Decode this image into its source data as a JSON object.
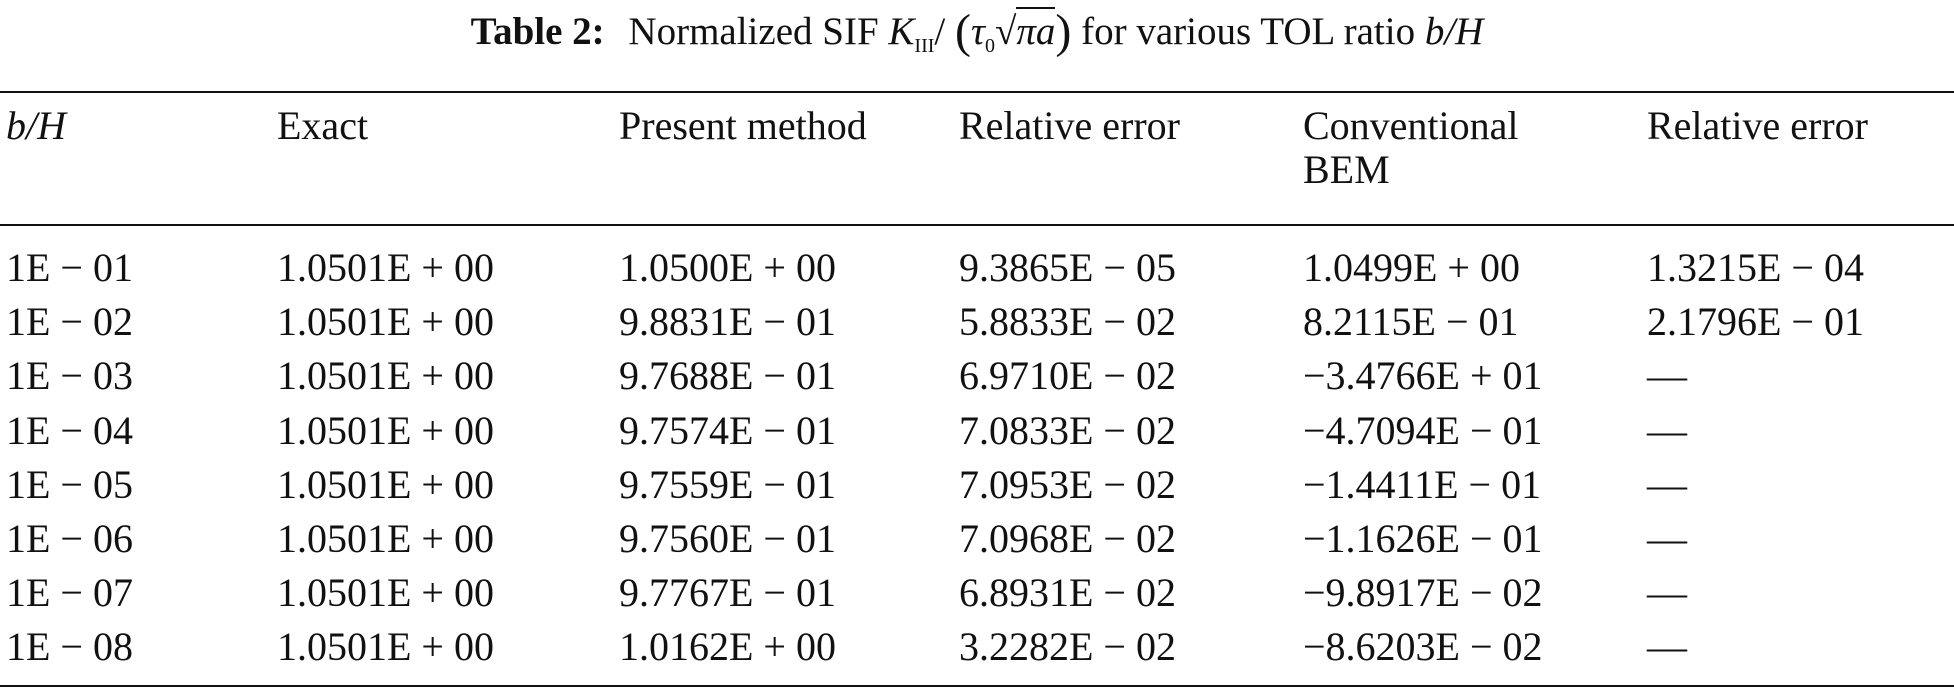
{
  "caption": {
    "label": "Table 2:",
    "text": "Normalized SIF",
    "symbol": "K",
    "subscript": "III",
    "slash": "/",
    "tau": "τ",
    "tau_subscript": "0",
    "radicand": "πa",
    "suffix": "for various TOL ratio",
    "ratio": "b/H"
  },
  "table": {
    "headers": [
      "b/H",
      "Exact",
      "Present method",
      "Relative error",
      "Conventional BEM",
      "Relative error"
    ],
    "rows": [
      [
        "1E − 01",
        "1.0501E + 00",
        "1.0500E + 00",
        "9.3865E − 05",
        "1.0499E + 00",
        "1.3215E − 04"
      ],
      [
        "1E − 02",
        "1.0501E + 00",
        "9.8831E − 01",
        "5.8833E − 02",
        "8.2115E − 01",
        "2.1796E − 01"
      ],
      [
        "1E − 03",
        "1.0501E + 00",
        "9.7688E − 01",
        "6.9710E − 02",
        "−3.4766E + 01",
        "—"
      ],
      [
        "1E − 04",
        "1.0501E + 00",
        "9.7574E − 01",
        "7.0833E − 02",
        "−4.7094E − 01",
        "—"
      ],
      [
        "1E − 05",
        "1.0501E + 00",
        "9.7559E − 01",
        "7.0953E − 02",
        "−1.4411E − 01",
        "—"
      ],
      [
        "1E − 06",
        "1.0501E + 00",
        "9.7560E − 01",
        "7.0968E − 02",
        "−1.1626E − 01",
        "—"
      ],
      [
        "1E − 07",
        "1.0501E + 00",
        "9.7767E − 01",
        "6.8931E − 02",
        "−9.8917E − 02",
        "—"
      ],
      [
        "1E − 08",
        "1.0501E + 00",
        "1.0162E + 00",
        "3.2282E − 02",
        "−8.6203E − 02",
        "—"
      ]
    ]
  }
}
